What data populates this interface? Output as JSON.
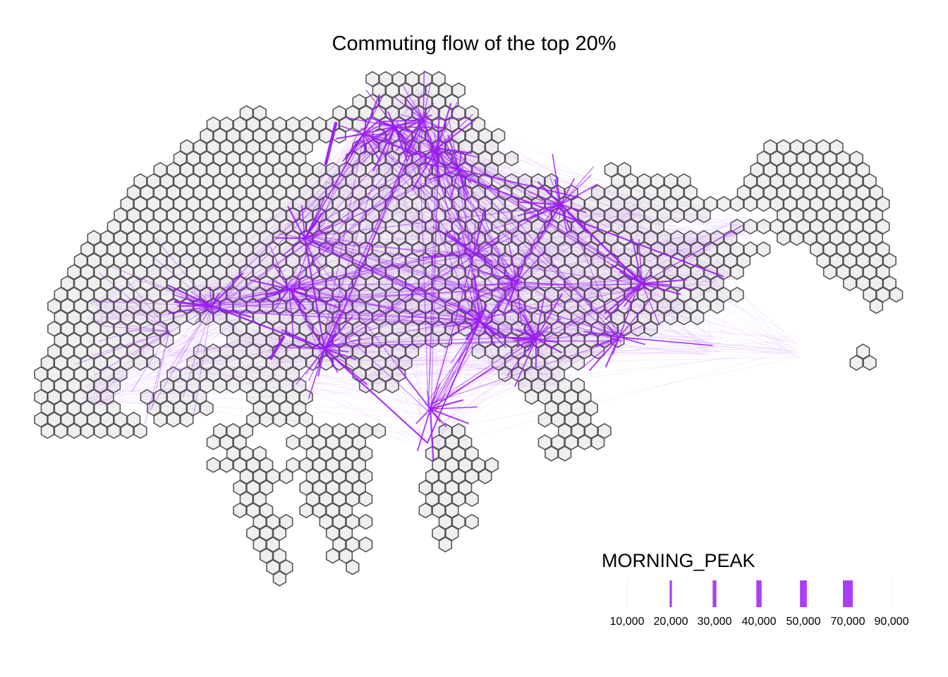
{
  "title": "Commuting flow of the top 20%",
  "colors": {
    "hex_fill": "#efefef",
    "hex_stroke": "#555555",
    "flow": "#9b1cf5"
  },
  "legend": {
    "title": "MORNING_PEAK",
    "items": [
      {
        "label": "10,000",
        "value": 10000
      },
      {
        "label": "20,000",
        "value": 20000
      },
      {
        "label": "30,000",
        "value": 30000
      },
      {
        "label": "40,000",
        "value": 40000
      },
      {
        "label": "50,000",
        "value": 50000
      },
      {
        "label": "70,000",
        "value": 70000
      },
      {
        "label": "90,000",
        "value": 90000
      }
    ]
  }
}
